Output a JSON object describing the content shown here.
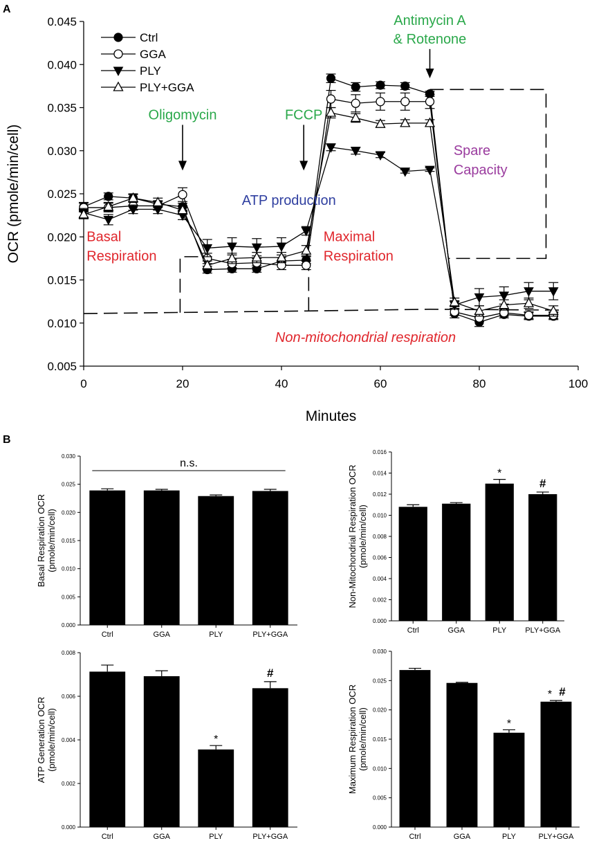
{
  "panel_labels": {
    "a": "A",
    "b": "B"
  },
  "colors": {
    "green": "#2aa84a",
    "blue": "#2f3fa0",
    "red": "#e0262c",
    "purple": "#9a3b9e",
    "black": "#000000"
  },
  "chart_data": [
    {
      "id": "A",
      "type": "line",
      "title": "",
      "xlabel": "Minutes",
      "ylabel": "OCR (pmole/min/cell)",
      "xlim": [
        0,
        100
      ],
      "ylim": [
        0.005,
        0.045
      ],
      "xticks": [
        "0",
        "20",
        "40",
        "60",
        "80",
        "100"
      ],
      "xtick_values": [
        0,
        20,
        40,
        60,
        80,
        100
      ],
      "yticks": [
        "0.005",
        "0.010",
        "0.015",
        "0.020",
        "0.025",
        "0.030",
        "0.035",
        "0.040",
        "0.045"
      ],
      "ytick_values": [
        0.005,
        0.01,
        0.015,
        0.02,
        0.025,
        0.03,
        0.035,
        0.04,
        0.045
      ],
      "x": [
        0,
        5,
        10,
        15,
        20,
        25,
        30,
        35,
        40,
        45,
        50,
        55,
        60,
        65,
        70,
        75,
        80,
        85,
        90,
        95
      ],
      "series": [
        {
          "name": "Ctrl",
          "marker": "circle-filled",
          "values": [
            0.0235,
            0.0247,
            0.0245,
            0.0238,
            0.0235,
            0.0162,
            0.0163,
            0.0163,
            0.0172,
            0.0173,
            0.0384,
            0.0374,
            0.0376,
            0.0375,
            0.0366,
            0.0111,
            0.0101,
            0.011,
            0.0108,
            0.0108
          ],
          "errors": [
            0.0005,
            0.0004,
            0.0004,
            0.0004,
            0.0004,
            0.0004,
            0.0004,
            0.0004,
            0.0004,
            0.0004,
            0.0005,
            0.0005,
            0.0004,
            0.0004,
            0.0003,
            0.0005,
            0.0005,
            0.0004,
            0.0004,
            0.0004
          ]
        },
        {
          "name": "GGA",
          "marker": "circle-open",
          "values": [
            0.0234,
            0.0234,
            0.0236,
            0.0236,
            0.0249,
            0.0175,
            0.0169,
            0.017,
            0.0167,
            0.0167,
            0.036,
            0.0355,
            0.0357,
            0.0357,
            0.0357,
            0.0113,
            0.0106,
            0.0112,
            0.0109,
            0.0109
          ],
          "errors": [
            0.0005,
            0.0005,
            0.0005,
            0.0005,
            0.0008,
            0.0006,
            0.0005,
            0.0005,
            0.0005,
            0.0005,
            0.001,
            0.001,
            0.001,
            0.001,
            0.0008,
            0.0004,
            0.0004,
            0.0004,
            0.0004,
            0.0004
          ]
        },
        {
          "name": "PLY",
          "marker": "triangle-down-filled",
          "values": [
            0.0228,
            0.022,
            0.0232,
            0.0232,
            0.0225,
            0.0187,
            0.0189,
            0.0188,
            0.0189,
            0.0207,
            0.0304,
            0.03,
            0.0295,
            0.0276,
            0.0278,
            0.0121,
            0.013,
            0.0132,
            0.0137,
            0.0137
          ],
          "errors": [
            0.0005,
            0.0006,
            0.0005,
            0.0005,
            0.0005,
            0.001,
            0.001,
            0.001,
            0.001,
            0.0005,
            0.0004,
            0.0004,
            0.0003,
            0.0002,
            0.0002,
            0.0005,
            0.001,
            0.001,
            0.001,
            0.001
          ]
        },
        {
          "name": "PLY+GGA",
          "marker": "triangle-up-open",
          "values": [
            0.0226,
            0.0235,
            0.0245,
            0.024,
            0.0231,
            0.0167,
            0.0175,
            0.0176,
            0.0176,
            0.0184,
            0.0344,
            0.0338,
            0.0331,
            0.0332,
            0.0332,
            0.0124,
            0.0114,
            0.0121,
            0.0123,
            0.0114
          ],
          "errors": [
            0.0005,
            0.0005,
            0.0005,
            0.0005,
            0.0005,
            0.0005,
            0.0006,
            0.0006,
            0.0006,
            0.0006,
            0.0006,
            0.0005,
            0.0004,
            0.0004,
            0.0004,
            0.0005,
            0.0006,
            0.0006,
            0.0006,
            0.0006
          ]
        }
      ],
      "legend": {
        "position": "top-left"
      },
      "injections": [
        {
          "label_lines": [
            "Oligomycin"
          ],
          "x": 20,
          "arrow_from": 0.033,
          "arrow_to": 0.0277
        },
        {
          "label_lines": [
            "FCCP"
          ],
          "x": 44.5,
          "arrow_from": 0.033,
          "arrow_to": 0.0277
        },
        {
          "label_lines": [
            "Antimycin A",
            "& Rotenone"
          ],
          "x": 70,
          "arrow_from": 0.0418,
          "arrow_to": 0.0384
        }
      ],
      "region_labels": [
        {
          "lines": [
            "ATP production"
          ],
          "color": "blue",
          "italic": false,
          "x": 32,
          "y": 0.0237
        },
        {
          "lines": [
            "Basal",
            "Respiration"
          ],
          "color": "red",
          "italic": false,
          "x": 0.6,
          "y": 0.0195
        },
        {
          "lines": [
            "Maximal",
            "Respiration"
          ],
          "color": "red",
          "italic": false,
          "x": 48.5,
          "y": 0.0195
        },
        {
          "lines": [
            "Spare",
            "Capacity"
          ],
          "color": "purple",
          "italic": false,
          "x": 74.8,
          "y": 0.0295
        },
        {
          "lines": [
            "Non-mitochondrial respiration"
          ],
          "color": "red",
          "italic": true,
          "x": 57,
          "y": 0.0078
        }
      ],
      "dashed_regions": [
        {
          "points": [
            [
              0,
              0.0111
            ],
            [
              45,
              0.0114
            ],
            [
              70,
              0.0116
            ],
            [
              96.5,
              0.0115
            ]
          ]
        },
        {
          "points": [
            [
              19.5,
              0.0112
            ],
            [
              19.5,
              0.0177
            ],
            [
              24,
              0.0177
            ]
          ]
        },
        {
          "points": [
            [
              45.5,
              0.0114
            ],
            [
              45.5,
              0.0177
            ]
          ]
        },
        {
          "points": [
            [
              70,
              0.0371
            ],
            [
              93.5,
              0.0371
            ],
            [
              93.5,
              0.0175
            ],
            [
              73.8,
              0.0175
            ]
          ]
        }
      ]
    },
    {
      "id": "B1",
      "type": "bar",
      "ylabel_lines": [
        "Basal Respiration OCR",
        "(pmole/min/cell)"
      ],
      "categories": [
        "Ctrl",
        "GGA",
        "PLY",
        "PLY+GGA"
      ],
      "values": [
        0.0239,
        0.0239,
        0.0229,
        0.0238
      ],
      "errors": [
        0.0003,
        0.0002,
        0.0002,
        0.0003
      ],
      "ylim": [
        0,
        0.03
      ],
      "yticks": [
        "0.000",
        "0.005",
        "0.010",
        "0.015",
        "0.020",
        "0.025",
        "0.030"
      ],
      "ytick_values": [
        0,
        0.005,
        0.01,
        0.015,
        0.02,
        0.025,
        0.03
      ],
      "annotations": [
        {
          "text": "n.s.",
          "span": [
            0,
            3
          ],
          "type": "bracket"
        }
      ]
    },
    {
      "id": "B2",
      "type": "bar",
      "ylabel_lines": [
        "Non-Mitochondrial Respiration OCR",
        "(pmole/min/cell)"
      ],
      "categories": [
        "Ctrl",
        "GGA",
        "PLY",
        "PLY+GGA"
      ],
      "values": [
        0.0108,
        0.0111,
        0.013,
        0.012
      ],
      "errors": [
        0.0002,
        0.0001,
        0.0004,
        0.0002
      ],
      "ylim": [
        0,
        0.016
      ],
      "yticks": [
        "0.000",
        "0.002",
        "0.004",
        "0.006",
        "0.008",
        "0.010",
        "0.012",
        "0.014",
        "0.016"
      ],
      "ytick_values": [
        0,
        0.002,
        0.004,
        0.006,
        0.008,
        0.01,
        0.012,
        0.014,
        0.016
      ],
      "annotations": [
        {
          "text": "*",
          "bar": 2
        },
        {
          "text": "#",
          "bar": 3
        }
      ]
    },
    {
      "id": "B3",
      "type": "bar",
      "ylabel_lines": [
        "ATP Generation OCR",
        "(pmole/min/cell)"
      ],
      "categories": [
        "Ctrl",
        "GGA",
        "PLY",
        "PLY+GGA"
      ],
      "values": [
        0.00713,
        0.00692,
        0.00356,
        0.00637
      ],
      "errors": [
        0.0003,
        0.00025,
        0.00018,
        0.0003
      ],
      "ylim": [
        0,
        0.008
      ],
      "yticks": [
        "0.000",
        "0.002",
        "0.004",
        "0.006",
        "0.008"
      ],
      "ytick_values": [
        0,
        0.002,
        0.004,
        0.006,
        0.008
      ],
      "annotations": [
        {
          "text": "*",
          "bar": 2
        },
        {
          "text": "#",
          "bar": 3
        }
      ]
    },
    {
      "id": "B4",
      "type": "bar",
      "ylabel_lines": [
        "Maximum Respiration OCR",
        "(pmole/min/cell)"
      ],
      "categories": [
        "Ctrl",
        "GGA",
        "PLY",
        "PLY+GGA"
      ],
      "values": [
        0.0268,
        0.0246,
        0.0161,
        0.0214
      ],
      "errors": [
        0.0003,
        0.0001,
        0.0005,
        0.0002
      ],
      "ylim": [
        0,
        0.03
      ],
      "yticks": [
        "0.000",
        "0.005",
        "0.010",
        "0.015",
        "0.020",
        "0.025",
        "0.030"
      ],
      "ytick_values": [
        0,
        0.005,
        0.01,
        0.015,
        0.02,
        0.025,
        0.03
      ],
      "annotations": [
        {
          "text": "*",
          "bar": 2
        },
        {
          "text": "*",
          "bar": 3
        },
        {
          "text": "#",
          "bar": 3
        }
      ]
    }
  ]
}
